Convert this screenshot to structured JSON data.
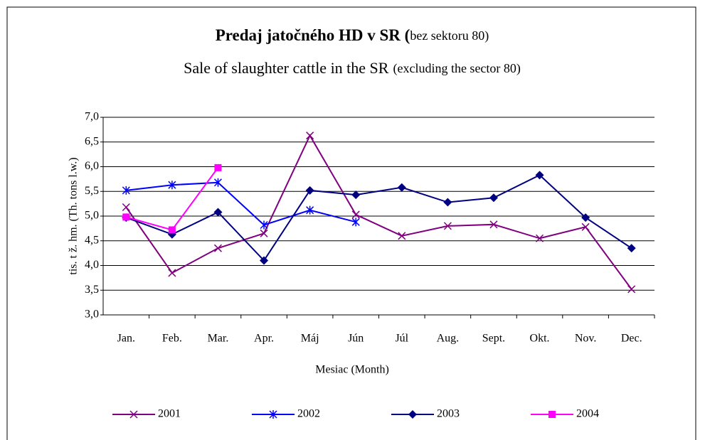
{
  "chart_data": {
    "type": "line",
    "title": "Predaj jatočného HD v SR (",
    "title_note": "bez sektoru 80)",
    "subtitle": "Sale of slaughter cattle in the SR",
    "subtitle_note": "(excluding the sector 80)",
    "x_label": "Mesiac (Month)",
    "y_label": "tis. t ž. hm. (Th. tons l.w.)",
    "categories": [
      "Jan.",
      "Feb.",
      "Mar.",
      "Apr.",
      "Máj",
      "Jún",
      "Júl",
      "Aug.",
      "Sept.",
      "Okt.",
      "Nov.",
      "Dec."
    ],
    "series": [
      {
        "name": "2001",
        "color": "#800080",
        "marker": "x",
        "values": [
          5.18,
          3.85,
          4.35,
          4.65,
          6.63,
          5.03,
          4.6,
          4.8,
          4.83,
          4.55,
          4.78,
          3.52
        ]
      },
      {
        "name": "2002",
        "color": "#0000ff",
        "marker": "star",
        "values": [
          5.52,
          5.63,
          5.68,
          4.82,
          5.12,
          4.88,
          null,
          null,
          null,
          null,
          null,
          null
        ]
      },
      {
        "name": "2003",
        "color": "#000080",
        "marker": "diamond",
        "values": [
          4.97,
          4.63,
          5.08,
          4.1,
          5.52,
          5.43,
          5.58,
          5.28,
          5.37,
          5.83,
          4.97,
          4.35
        ]
      },
      {
        "name": "2004",
        "color": "#ff00ff",
        "marker": "square",
        "values": [
          4.98,
          4.72,
          5.98,
          null,
          null,
          null,
          null,
          null,
          null,
          null,
          null,
          null
        ]
      }
    ],
    "ylim": [
      3,
      7
    ],
    "yticks": [
      {
        "value": 3,
        "label": "3,0"
      },
      {
        "value": 3.5,
        "label": "3,5"
      },
      {
        "value": 4,
        "label": "4,0"
      },
      {
        "value": 4.5,
        "label": "4,5"
      },
      {
        "value": 5,
        "label": "5,0"
      },
      {
        "value": 5.5,
        "label": "5,5"
      },
      {
        "value": 6,
        "label": "6,0"
      },
      {
        "value": 6.5,
        "label": "6,5"
      },
      {
        "value": 7,
        "label": "7,0"
      }
    ],
    "grid": true,
    "legend": "bottom"
  }
}
